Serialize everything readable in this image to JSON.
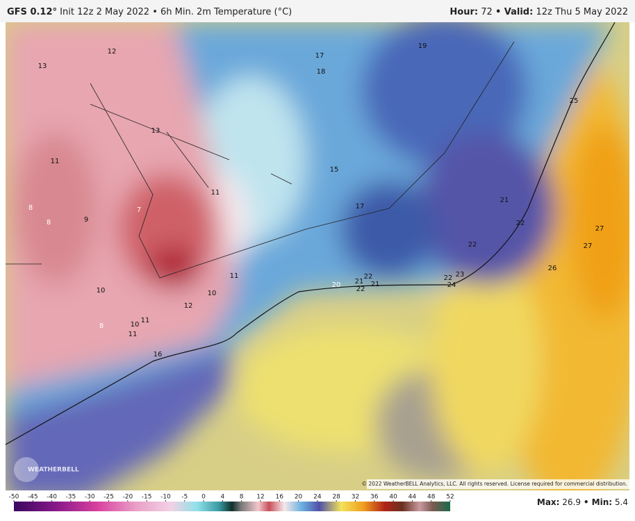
{
  "header": {
    "model": "GFS 0.12°",
    "description": "Init 12z 2 May 2022 • 6h Min. 2m Temperature (°C)",
    "hour_key": "Hour:",
    "hour": 72,
    "valid_key": "• Valid:",
    "valid": "12z Thu 5 May 2022"
  },
  "map": {
    "labels": [
      12,
      13,
      17,
      18,
      19,
      25,
      13,
      11,
      15,
      11,
      8,
      8,
      9,
      7,
      17,
      21,
      22,
      27,
      27,
      22,
      26,
      11,
      22,
      21,
      21,
      20,
      22,
      23,
      24,
      22,
      10,
      10,
      12,
      11,
      10,
      8,
      11,
      16
    ],
    "logo": "WEATHERBELL",
    "copyright": "© 2022 WeatherBELL Analytics, LLC. All rights reserved. License required for commercial distribution."
  },
  "colorbar": {
    "ticks": [
      -50,
      -45,
      -40,
      -35,
      -30,
      -25,
      -20,
      -15,
      -10,
      -5,
      0,
      4,
      8,
      12,
      16,
      20,
      24,
      28,
      32,
      36,
      40,
      44,
      48,
      52
    ]
  },
  "footer": {
    "max_key": "Max:",
    "max": 26.9,
    "min_key": "• Min:",
    "min": 5.4
  }
}
